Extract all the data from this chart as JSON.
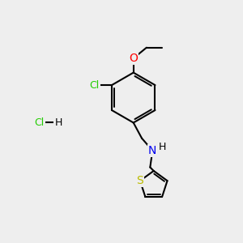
{
  "background_color": "#eeeeee",
  "figsize": [
    3.0,
    3.0
  ],
  "dpi": 100,
  "bond_color": "#000000",
  "bond_width": 1.5,
  "atom_colors": {
    "Cl": "#22cc00",
    "O": "#ff0000",
    "N": "#0000ee",
    "S": "#bbbb00",
    "C": "#000000"
  },
  "font_size": 9
}
